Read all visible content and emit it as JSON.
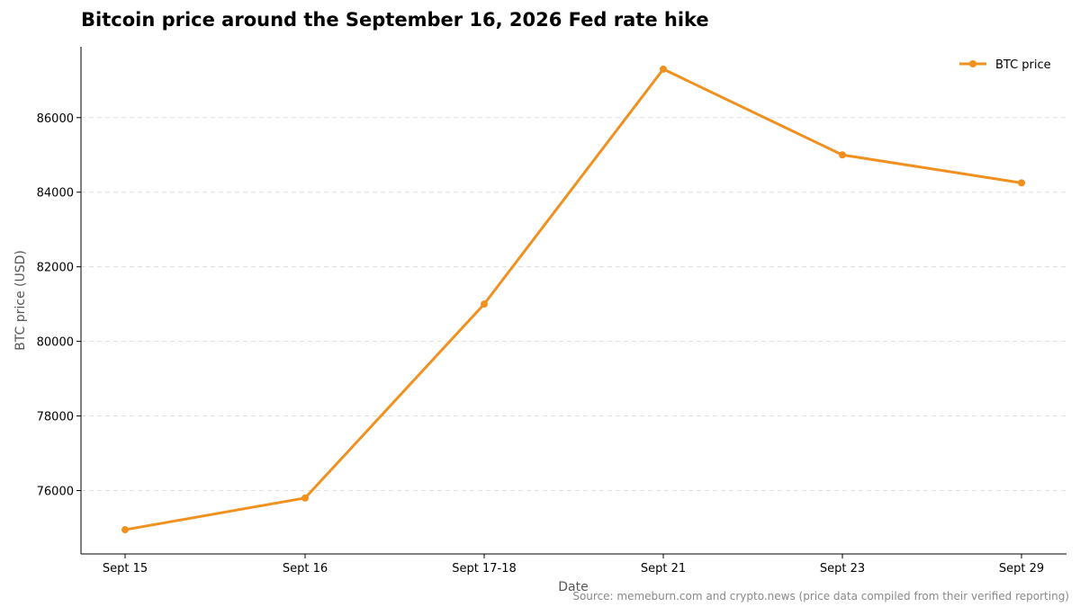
{
  "chart_data": {
    "type": "line",
    "title": "Bitcoin price around the September 16, 2026 Fed rate hike",
    "xlabel": "Date",
    "ylabel": "BTC price (USD)",
    "categories": [
      "Sept 15",
      "Sept 16",
      "Sept 17-18",
      "Sept 21",
      "Sept 23",
      "Sept 29"
    ],
    "series": [
      {
        "name": "BTC price",
        "values": [
          74950,
          75800,
          81000,
          87300,
          85000,
          84250
        ]
      }
    ],
    "ylim": [
      74300,
      87900
    ],
    "yticks": [
      76000,
      78000,
      80000,
      82000,
      84000,
      86000
    ],
    "grid": "horizontal dashed",
    "legend": "top-right",
    "color": "#f0901e",
    "source": "Source: memeburn.com and crypto.news (price data compiled from their verified reporting)"
  }
}
